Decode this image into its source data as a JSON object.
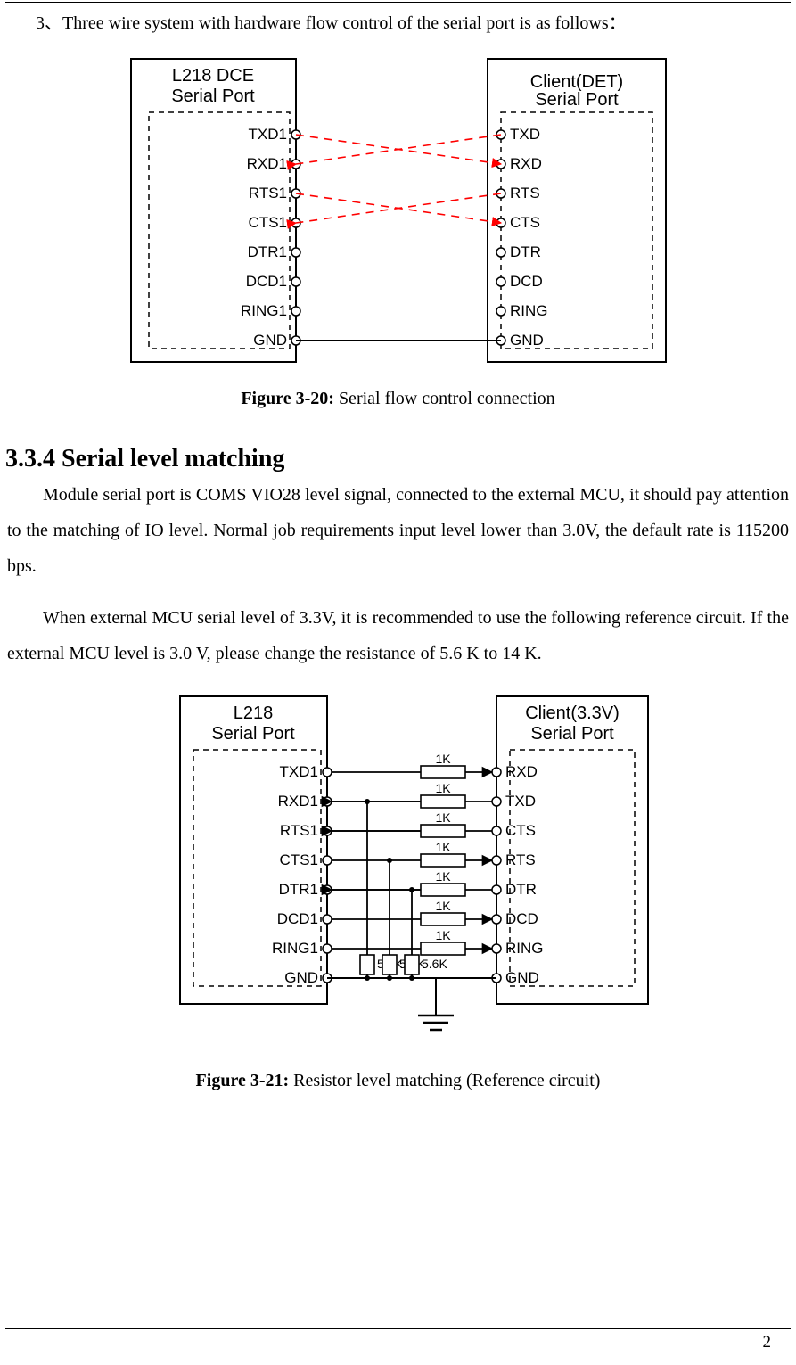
{
  "intro_text": "3、Three wire system with hardware flow control of the serial port is as follows：",
  "figure1": {
    "caption_bold": "Figure 3-20:",
    "caption_rest": " Serial flow control connection",
    "left_title1": "L218 DCE",
    "left_title2": "Serial Port",
    "right_title1": "Client(DET)",
    "right_title2": "Serial Port",
    "left_pins": [
      "TXD1",
      "RXD1",
      "RTS1",
      "CTS1",
      "DTR1",
      "DCD1",
      "RING1",
      "GND"
    ],
    "right_pins": [
      "TXD",
      "RXD",
      "RTS",
      "CTS",
      "DTR",
      "DCD",
      "RING",
      "GND"
    ],
    "colors": {
      "box": "#000000",
      "dashed": "#000000",
      "signal": "#ff0000"
    }
  },
  "section_heading": "3.3.4 Serial level matching",
  "paragraph1": "Module serial port is COMS VIO28 level signal, connected to the external MCU, it should pay attention to the matching of IO level. Normal job requirements input level lower than 3.0V, the default rate is 115200 bps.",
  "paragraph2": "When external MCU serial level of 3.3V, it is recommended to use the following reference circuit. If the external MCU level is 3.0 V, please change the resistance of 5.6 K to 14 K.",
  "figure2": {
    "caption_bold": "Figure 3-21:",
    "caption_rest": " Resistor level matching (Reference circuit)",
    "left_title1": "L218",
    "left_title2": "Serial Port",
    "right_title1": "Client(3.3V)",
    "right_title2": "Serial Port",
    "left_pins": [
      "TXD1",
      "RXD1",
      "RTS1",
      "CTS1",
      "DTR1",
      "DCD1",
      "RING1",
      "GND"
    ],
    "right_pins": [
      "RXD",
      "TXD",
      "CTS",
      "RTS",
      "DTR",
      "DCD",
      "RING",
      "GND"
    ],
    "series_r_label": "1K",
    "pulldown_r_label": "5.6K"
  },
  "page_number": "2"
}
